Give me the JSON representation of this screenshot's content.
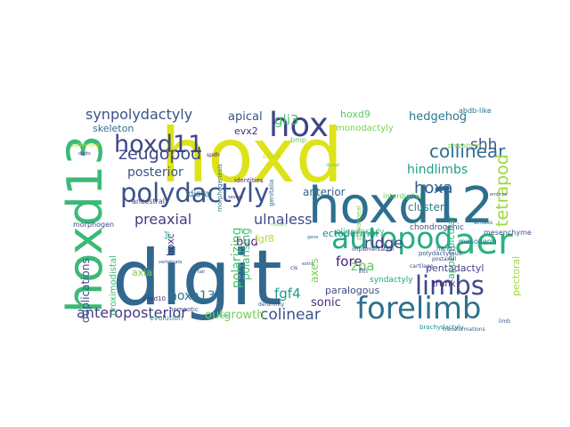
{
  "word_cloud": {
    "words": [
      {
        "text": "hoxd",
        "color": "#dde318"
      },
      {
        "text": "digit",
        "color": "#31688e"
      },
      {
        "text": "hoxd12",
        "color": "#2d708e"
      },
      {
        "text": "hoxd13",
        "color": "#3aba76"
      },
      {
        "text": "polydactyly",
        "color": "#3b528b"
      },
      {
        "text": "hoxd11",
        "color": "#404688"
      },
      {
        "text": "limbs",
        "color": "#3e4a89"
      },
      {
        "text": "forelimb",
        "color": "#2c728e"
      },
      {
        "text": "autopod",
        "color": "#25ac82"
      },
      {
        "text": "aer",
        "color": "#2db27d"
      },
      {
        "text": "hox",
        "color": "#414487"
      },
      {
        "text": "synpolydactyly",
        "color": "#3b528b"
      },
      {
        "text": "zeugopod",
        "color": "#3e4989"
      },
      {
        "text": "collinear",
        "color": "#2f6c8e"
      },
      {
        "text": "hindlimbs",
        "color": "#1f9e89"
      },
      {
        "text": "tetrapod",
        "color": "#9bd93c"
      },
      {
        "text": "anteroposterior",
        "color": "#443983"
      },
      {
        "text": "colinear",
        "color": "#3b528b"
      },
      {
        "text": "preaxial",
        "color": "#443a83"
      },
      {
        "text": "ulnaless",
        "color": "#3e4c8a"
      },
      {
        "text": "posterior",
        "color": "#3a548c"
      },
      {
        "text": "gli3",
        "color": "#4ac16d"
      },
      {
        "text": "shh",
        "color": "#3b528b"
      },
      {
        "text": "hoxa",
        "color": "#365d8d"
      },
      {
        "text": "hedgehog",
        "color": "#2a788e"
      },
      {
        "text": "cluster",
        "color": "#26828e"
      },
      {
        "text": "ridge",
        "color": "#424086"
      },
      {
        "text": "fore",
        "color": "#482173"
      },
      {
        "text": "sonic",
        "color": "#472c7a"
      },
      {
        "text": "zpa",
        "color": "#5ec962"
      },
      {
        "text": "bud",
        "color": "#481a6c"
      },
      {
        "text": "fgf4",
        "color": "#1f9a8a"
      },
      {
        "text": "anterior",
        "color": "#33638d"
      },
      {
        "text": "apical",
        "color": "#3b528b"
      },
      {
        "text": "evx2",
        "color": "#46307e"
      },
      {
        "text": "skeleton",
        "color": "#2e6f8e"
      },
      {
        "text": "hoxd9",
        "color": "#5ec962"
      },
      {
        "text": "monodactyly",
        "color": "#7ad151"
      },
      {
        "text": "ectodermal",
        "color": "#23888e"
      },
      {
        "text": "outgrowth",
        "color": "#73d056"
      },
      {
        "text": "hoxa13",
        "color": "#2a788e"
      },
      {
        "text": "polarizing",
        "color": "#4ac16d"
      },
      {
        "text": "duplications",
        "color": "#3b528b"
      },
      {
        "text": "paralogous",
        "color": "#3e4a89"
      },
      {
        "text": "pentadactyl",
        "color": "#433e85"
      },
      {
        "text": "axes",
        "color": "#7ad151"
      },
      {
        "text": "appendicular",
        "color": "#35b779"
      },
      {
        "text": "pectoral",
        "color": "#a2da37"
      },
      {
        "text": "trunk",
        "color": "#481f70"
      },
      {
        "text": "fgf8",
        "color": "#b5de2b"
      },
      {
        "text": "hoxc",
        "color": "#46337e"
      },
      {
        "text": "axial",
        "color": "#7ad151"
      },
      {
        "text": "proximodistal",
        "color": "#3aba76"
      },
      {
        "text": "polarising",
        "color": "#42be71"
      },
      {
        "text": "distal",
        "color": "#2a788e"
      },
      {
        "text": "syndactyly",
        "color": "#1fa187"
      },
      {
        "text": "oligodactyly",
        "color": "#3aba76"
      },
      {
        "text": "chondrogenic",
        "color": "#3b528b"
      },
      {
        "text": "mesoderm",
        "color": "#2c728e"
      },
      {
        "text": "mesenchyme",
        "color": "#3b528b"
      },
      {
        "text": "morphogen",
        "color": "#3e4989"
      },
      {
        "text": "ancestral",
        "color": "#453882"
      },
      {
        "text": "evolution",
        "color": "#21918c"
      },
      {
        "text": "homeotic",
        "color": "#3b528b"
      },
      {
        "text": "hoxd10",
        "color": "#46327e"
      },
      {
        "text": "interdigital",
        "color": "#5ec962"
      },
      {
        "text": "identities",
        "color": "#482878"
      },
      {
        "text": "morphogenesis",
        "color": "#2c728e"
      },
      {
        "text": "genitalia",
        "color": "#31688e"
      },
      {
        "text": "chick",
        "color": "#b8de29"
      },
      {
        "text": "bmp",
        "color": "#5ec962"
      },
      {
        "text": "fin",
        "color": "#3b528b"
      },
      {
        "text": "hand2",
        "color": "#31688e"
      },
      {
        "text": "polydactylous",
        "color": "#3b528b"
      },
      {
        "text": "prepattern",
        "color": "#7ad151"
      },
      {
        "text": "abdb-like",
        "color": "#2a788e"
      },
      {
        "text": "patterning",
        "color": "#b5de2b"
      },
      {
        "text": "postaxial",
        "color": "#3e4989"
      },
      {
        "text": "implementation",
        "color": "#443a83"
      },
      {
        "text": "fgf",
        "color": "#1f9e89"
      },
      {
        "text": "spdh",
        "color": "#481a6c"
      },
      {
        "text": "brachydactyly",
        "color": "#21918c"
      },
      {
        "text": "cartilage",
        "color": "#3b528b"
      },
      {
        "text": "phalangeal",
        "color": "#7ad151"
      },
      {
        "text": "acuaes",
        "color": "#2a788e"
      },
      {
        "text": "limb",
        "color": "#3b528b"
      },
      {
        "text": "cis",
        "color": "#482878"
      },
      {
        "text": "transformations",
        "color": "#31688e"
      },
      {
        "text": "deformity",
        "color": "#3b528b"
      },
      {
        "text": "severe",
        "color": "#46327e"
      },
      {
        "text": "mutant",
        "color": "#7ad151"
      },
      {
        "text": "gene",
        "color": "#2c728e"
      },
      {
        "text": "extra",
        "color": "#3b528b"
      },
      {
        "text": "dorsal",
        "color": "#5ec962"
      },
      {
        "text": "vertebrate",
        "color": "#3e4989"
      },
      {
        "text": "tail",
        "color": "#453882"
      },
      {
        "text": "mouse",
        "color": "#21918c"
      },
      {
        "text": "embryo",
        "color": "#3b528b"
      },
      {
        "text": "digits",
        "color": "#46327e"
      }
    ]
  }
}
